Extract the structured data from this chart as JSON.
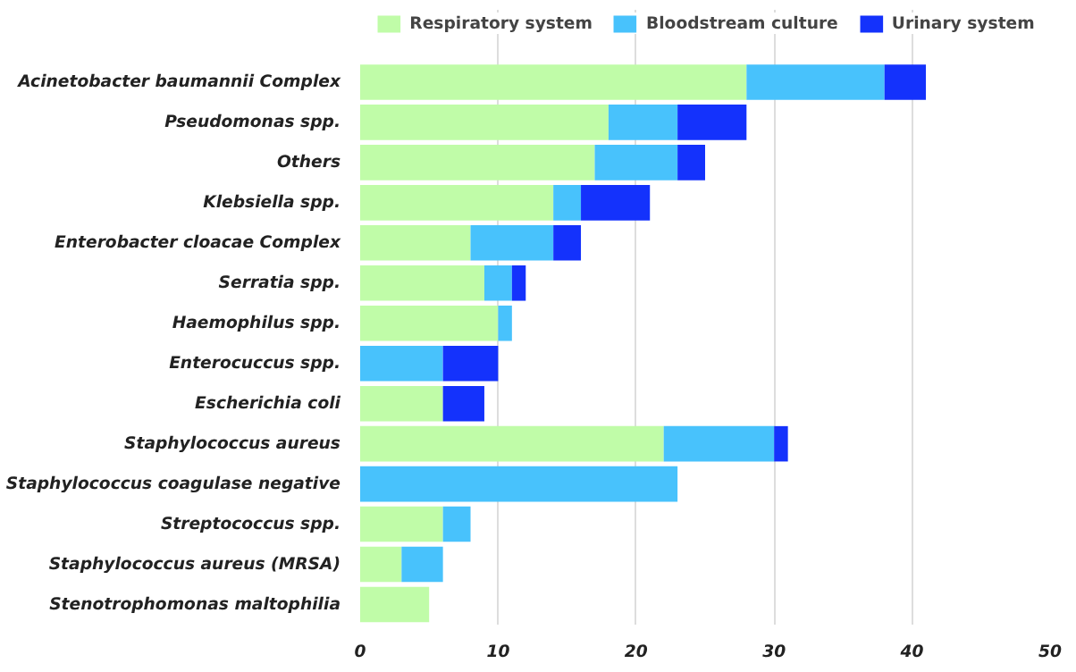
{
  "chart_data": {
    "type": "bar",
    "orientation": "horizontal",
    "stacked": true,
    "categories": [
      "Acinetobacter baumannii Complex",
      "Pseudomonas spp.",
      "Others",
      "Klebsiella spp.",
      "Enterobacter cloacae Complex",
      "Serratia spp.",
      "Haemophilus spp.",
      "Enterocuccus spp.",
      "Escherichia coli",
      "Staphylococcus aureus",
      "Staphylococcus coagulase negative",
      "Streptococcus spp.",
      "Staphylococcus aureus (MRSA)",
      "Stenotrophomonas maltophilia"
    ],
    "series": [
      {
        "name": "Respiratory system",
        "color": "#c0fca8",
        "values": [
          28,
          18,
          17,
          14,
          8,
          9,
          10,
          0,
          6,
          22,
          0,
          6,
          3,
          5
        ]
      },
      {
        "name": "Bloodstream culture",
        "color": "#48c2fc",
        "values": [
          10,
          5,
          6,
          2,
          6,
          2,
          1,
          6,
          0,
          8,
          23,
          2,
          3,
          0
        ]
      },
      {
        "name": "Urinary system",
        "color": "#1432fc",
        "values": [
          3,
          5,
          2,
          5,
          2,
          1,
          0,
          4,
          3,
          1,
          0,
          0,
          0,
          0
        ]
      }
    ],
    "xlim": [
      0,
      50
    ],
    "xticks": [
      0,
      10,
      20,
      30,
      40,
      50
    ],
    "grid": "x",
    "legend": "top"
  }
}
